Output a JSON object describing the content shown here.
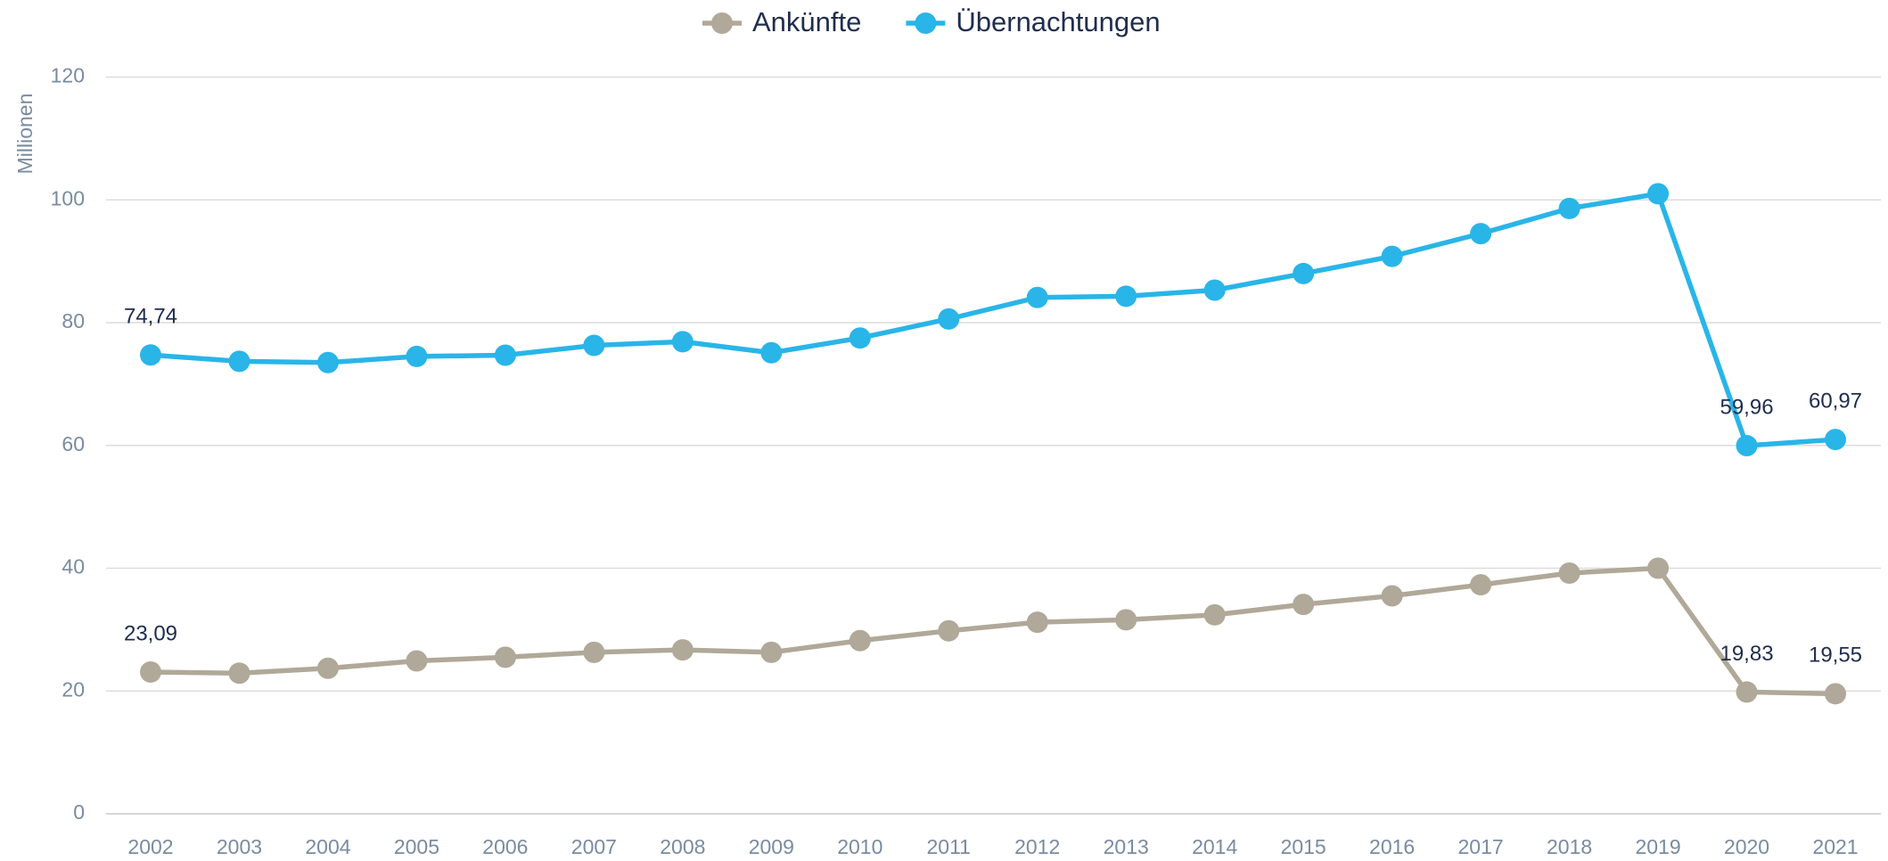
{
  "chart_data": {
    "type": "line",
    "y_axis_label": "Millionen",
    "categories": [
      "2002",
      "2003",
      "2004",
      "2005",
      "2006",
      "2007",
      "2008",
      "2009",
      "2010",
      "2011",
      "2012",
      "2013",
      "2014",
      "2015",
      "2016",
      "2017",
      "2018",
      "2019",
      "2020",
      "2021"
    ],
    "series": [
      {
        "name": "Ankünfte",
        "color": "#b0a898",
        "values": [
          23.09,
          22.9,
          23.7,
          24.9,
          25.5,
          26.3,
          26.7,
          26.3,
          28.2,
          29.8,
          31.2,
          31.6,
          32.4,
          34.1,
          35.5,
          37.3,
          39.2,
          40.0,
          19.83,
          19.55
        ],
        "value_labels": [
          "23,09",
          null,
          null,
          null,
          null,
          null,
          null,
          null,
          null,
          null,
          null,
          null,
          null,
          null,
          null,
          null,
          null,
          null,
          "19,83",
          "19,55"
        ]
      },
      {
        "name": "Übernachtungen",
        "color": "#29b5e8",
        "values": [
          74.74,
          73.7,
          73.5,
          74.5,
          74.7,
          76.3,
          76.9,
          75.1,
          77.5,
          80.6,
          84.1,
          84.3,
          85.3,
          88.0,
          90.8,
          94.5,
          98.6,
          101.0,
          59.96,
          60.97
        ],
        "value_labels": [
          "74,74",
          null,
          null,
          null,
          null,
          null,
          null,
          null,
          null,
          null,
          null,
          null,
          null,
          null,
          null,
          null,
          null,
          null,
          "59,96",
          "60,97"
        ]
      }
    ],
    "ylim": [
      0,
      120
    ],
    "yticks": [
      0,
      20,
      40,
      60,
      80,
      100,
      120
    ],
    "grid": true,
    "legend": "top"
  }
}
